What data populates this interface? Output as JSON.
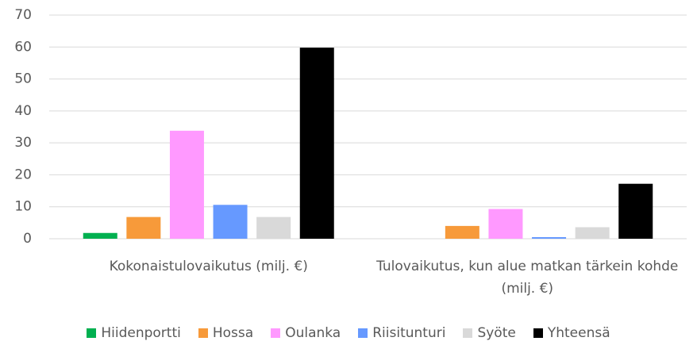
{
  "chart_data": {
    "type": "bar",
    "categories": [
      "Kokonaistulovaikutus (milj. €)",
      "Tulovaikutus, kun alue matkan tärkein kohde (milj. €)"
    ],
    "series": [
      {
        "name": "Hiidenportti",
        "color": "#00b050",
        "values": [
          1.8,
          0
        ]
      },
      {
        "name": "Hossa",
        "color": "#f79a3a",
        "values": [
          6.8,
          4.0
        ]
      },
      {
        "name": "Oulanka",
        "color": "#ff99ff",
        "values": [
          33.8,
          9.3
        ]
      },
      {
        "name": "Riisitunturi",
        "color": "#6699ff",
        "values": [
          10.6,
          0.5
        ]
      },
      {
        "name": "Syöte",
        "color": "#d9d9d9",
        "values": [
          6.8,
          3.6
        ]
      },
      {
        "name": "Yhteensä",
        "color": "#000000",
        "values": [
          59.8,
          17.2
        ]
      }
    ],
    "ylim": [
      0,
      70
    ],
    "yticks": [
      0,
      10,
      20,
      30,
      40,
      50,
      60,
      70
    ],
    "grid": true,
    "legend": "bottom"
  }
}
